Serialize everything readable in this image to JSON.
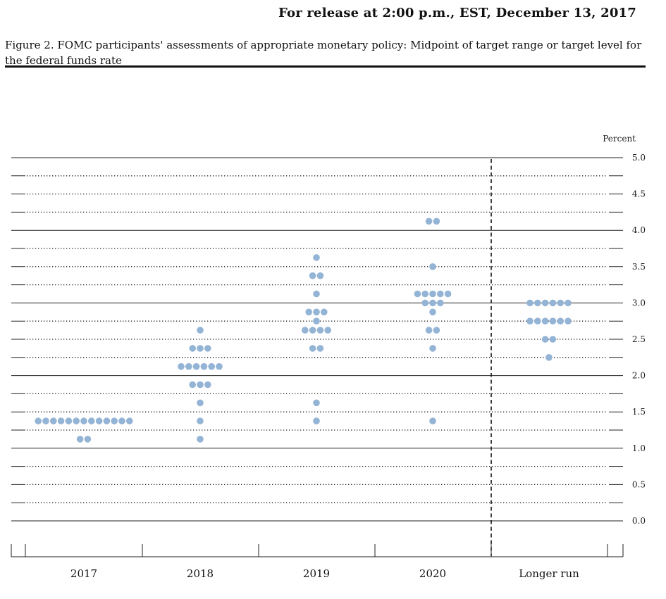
{
  "header": {
    "release": "For release at 2:00 p.m., EST, December 13, 2017",
    "figure_title": "Figure 2. FOMC participants' assessments of appropriate monetary policy: Midpoint of target range or target level for the federal funds rate"
  },
  "colors": {
    "dot": "#94b4d6",
    "line": "#222222"
  },
  "chart_data": {
    "type": "scatter",
    "subtype": "dot-plot",
    "ylabel": "Percent",
    "ylim": [
      0,
      5
    ],
    "yticks": [
      "5.0",
      "4.5",
      "4.0",
      "3.5",
      "3.0",
      "2.5",
      "2.0",
      "1.5",
      "1.0",
      "0.5",
      "0.0"
    ],
    "grid": true,
    "categories": [
      "2017",
      "2018",
      "2019",
      "2020",
      "Longer run"
    ],
    "series": [
      {
        "category": "2017",
        "points": [
          {
            "y": 1.375,
            "count": 13
          },
          {
            "y": 1.125,
            "count": 2
          }
        ]
      },
      {
        "category": "2018",
        "points": [
          {
            "y": 2.625,
            "count": 1
          },
          {
            "y": 2.375,
            "count": 3
          },
          {
            "y": 2.125,
            "count": 6
          },
          {
            "y": 1.875,
            "count": 3
          },
          {
            "y": 1.625,
            "count": 1
          },
          {
            "y": 1.375,
            "count": 1
          },
          {
            "y": 1.125,
            "count": 1
          }
        ]
      },
      {
        "category": "2019",
        "points": [
          {
            "y": 3.625,
            "count": 1
          },
          {
            "y": 3.375,
            "count": 2
          },
          {
            "y": 3.125,
            "count": 1
          },
          {
            "y": 2.875,
            "count": 3
          },
          {
            "y": 2.75,
            "count": 1
          },
          {
            "y": 2.625,
            "count": 4
          },
          {
            "y": 2.375,
            "count": 2
          },
          {
            "y": 1.625,
            "count": 1
          },
          {
            "y": 1.375,
            "count": 1
          }
        ]
      },
      {
        "category": "2020",
        "points": [
          {
            "y": 4.125,
            "count": 2
          },
          {
            "y": 3.5,
            "count": 1
          },
          {
            "y": 3.125,
            "count": 5
          },
          {
            "y": 3.0,
            "count": 3
          },
          {
            "y": 2.875,
            "count": 1
          },
          {
            "y": 2.625,
            "count": 2
          },
          {
            "y": 2.375,
            "count": 1
          },
          {
            "y": 1.375,
            "count": 1
          }
        ]
      },
      {
        "category": "Longer run",
        "points": [
          {
            "y": 3.0,
            "count": 6
          },
          {
            "y": 2.75,
            "count": 6
          },
          {
            "y": 2.5,
            "count": 2
          },
          {
            "y": 2.25,
            "count": 1
          }
        ]
      }
    ]
  }
}
